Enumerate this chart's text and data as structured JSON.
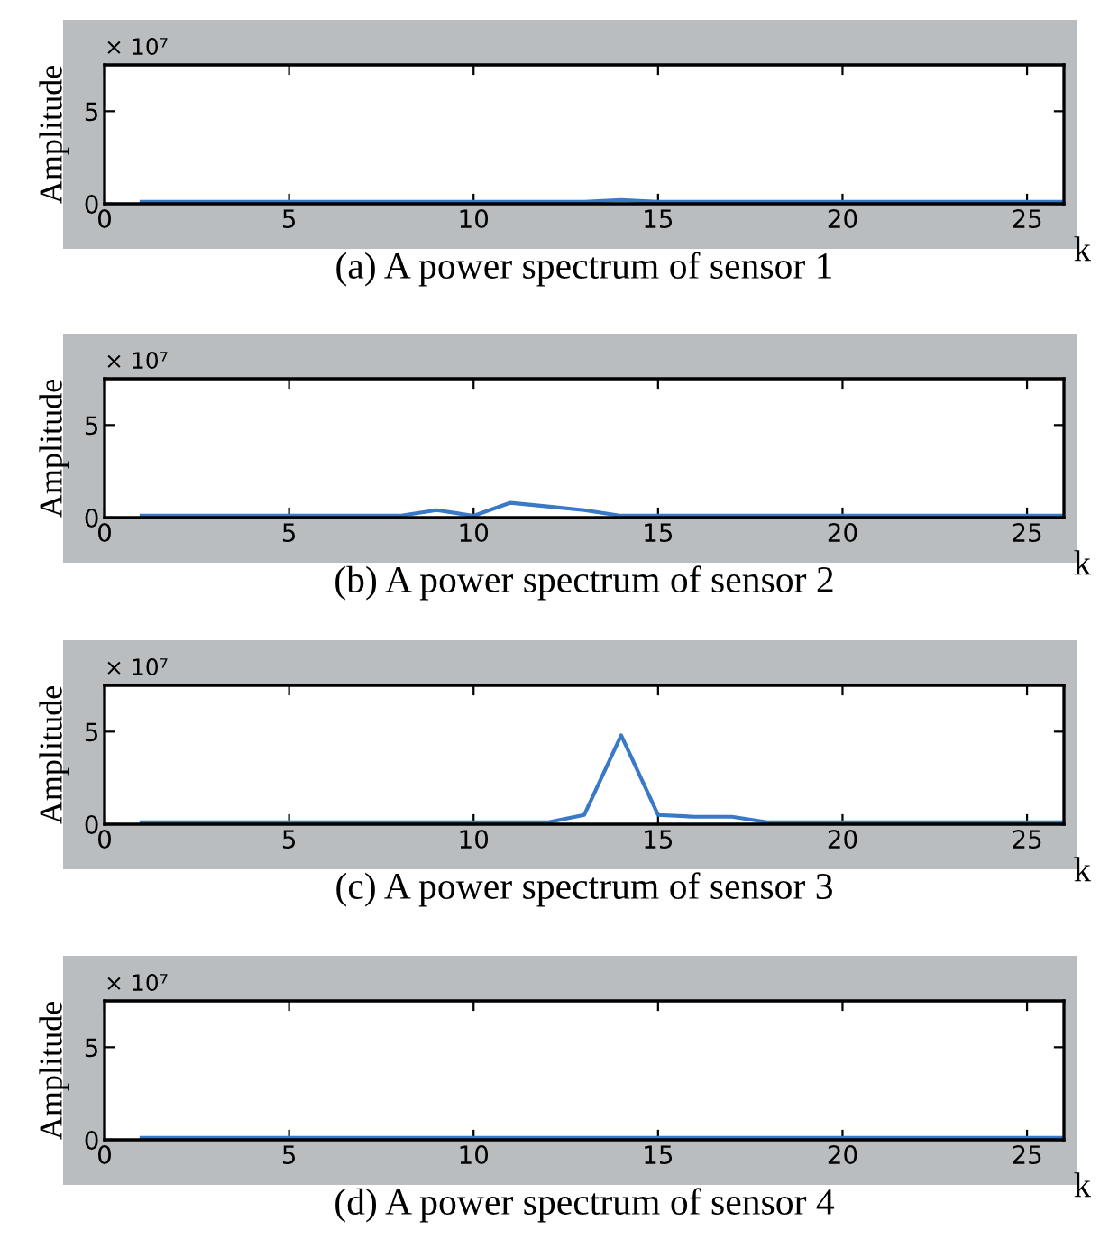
{
  "chart_data": [
    {
      "type": "line",
      "title": "(a) A power spectrum of sensor 1",
      "xlabel": "k",
      "ylabel": "Amplitude",
      "annotations": [
        "× 10⁷"
      ],
      "x": [
        1,
        2,
        3,
        4,
        5,
        6,
        7,
        8,
        9,
        10,
        11,
        12,
        13,
        14,
        15,
        16,
        17,
        18,
        19,
        20,
        21,
        22,
        23,
        24,
        25,
        26
      ],
      "series": [
        {
          "color": "#3a78c8",
          "values": [
            0.1,
            0.1,
            0.1,
            0.1,
            0.1,
            0.1,
            0.1,
            0.1,
            0.1,
            0.1,
            0.1,
            0.1,
            0.1,
            0.2,
            0.1,
            0.1,
            0.1,
            0.1,
            0.1,
            0.1,
            0.1,
            0.1,
            0.1,
            0.1,
            0.1,
            0.1
          ]
        }
      ],
      "xlim": [
        0,
        26
      ],
      "ylim": [
        0,
        7.5
      ],
      "xticks": [
        0,
        5,
        10,
        15,
        20,
        25
      ],
      "yticks": [
        0,
        5
      ],
      "grid": false
    },
    {
      "type": "line",
      "title": "(b) A power spectrum of sensor 2",
      "xlabel": "k",
      "ylabel": "Amplitude",
      "annotations": [
        "× 10⁷"
      ],
      "x": [
        1,
        2,
        3,
        4,
        5,
        6,
        7,
        8,
        9,
        10,
        11,
        12,
        13,
        14,
        15,
        16,
        17,
        18,
        19,
        20,
        21,
        22,
        23,
        24,
        25,
        26
      ],
      "series": [
        {
          "color": "#3a78c8",
          "values": [
            0.1,
            0.1,
            0.1,
            0.1,
            0.1,
            0.1,
            0.1,
            0.1,
            0.4,
            0.1,
            0.8,
            0.6,
            0.4,
            0.1,
            0.1,
            0.1,
            0.1,
            0.1,
            0.1,
            0.1,
            0.1,
            0.1,
            0.1,
            0.1,
            0.1,
            0.1
          ]
        }
      ],
      "xlim": [
        0,
        26
      ],
      "ylim": [
        0,
        7.5
      ],
      "xticks": [
        0,
        5,
        10,
        15,
        20,
        25
      ],
      "yticks": [
        0,
        5
      ],
      "grid": false
    },
    {
      "type": "line",
      "title": "(c) A power spectrum of sensor 3",
      "xlabel": "k",
      "ylabel": "Amplitude",
      "annotations": [
        "× 10⁷"
      ],
      "x": [
        1,
        2,
        3,
        4,
        5,
        6,
        7,
        8,
        9,
        10,
        11,
        12,
        13,
        14,
        15,
        16,
        17,
        18,
        19,
        20,
        21,
        22,
        23,
        24,
        25,
        26
      ],
      "series": [
        {
          "color": "#3a78c8",
          "values": [
            0.1,
            0.1,
            0.1,
            0.1,
            0.1,
            0.1,
            0.1,
            0.1,
            0.1,
            0.1,
            0.1,
            0.1,
            0.5,
            4.8,
            0.5,
            0.4,
            0.4,
            0.1,
            0.1,
            0.1,
            0.1,
            0.1,
            0.1,
            0.1,
            0.1,
            0.1
          ]
        }
      ],
      "xlim": [
        0,
        26
      ],
      "ylim": [
        0,
        7.5
      ],
      "xticks": [
        0,
        5,
        10,
        15,
        20,
        25
      ],
      "yticks": [
        0,
        5
      ],
      "grid": false
    },
    {
      "type": "line",
      "title": "(d) A power spectrum of sensor 4",
      "xlabel": "k",
      "ylabel": "Amplitude",
      "annotations": [
        "× 10⁷"
      ],
      "x": [
        1,
        2,
        3,
        4,
        5,
        6,
        7,
        8,
        9,
        10,
        11,
        12,
        13,
        14,
        15,
        16,
        17,
        18,
        19,
        20,
        21,
        22,
        23,
        24,
        25,
        26
      ],
      "series": [
        {
          "color": "#3a78c8",
          "values": [
            0.1,
            0.1,
            0.1,
            0.1,
            0.1,
            0.1,
            0.1,
            0.1,
            0.1,
            0.1,
            0.1,
            0.1,
            0.1,
            0.1,
            0.1,
            0.1,
            0.1,
            0.1,
            0.1,
            0.1,
            0.1,
            0.1,
            0.1,
            0.1,
            0.1,
            0.1
          ]
        }
      ],
      "xlim": [
        0,
        26
      ],
      "ylim": [
        0,
        7.5
      ],
      "xticks": [
        0,
        5,
        10,
        15,
        20,
        25
      ],
      "yticks": [
        0,
        5
      ],
      "grid": false
    }
  ]
}
